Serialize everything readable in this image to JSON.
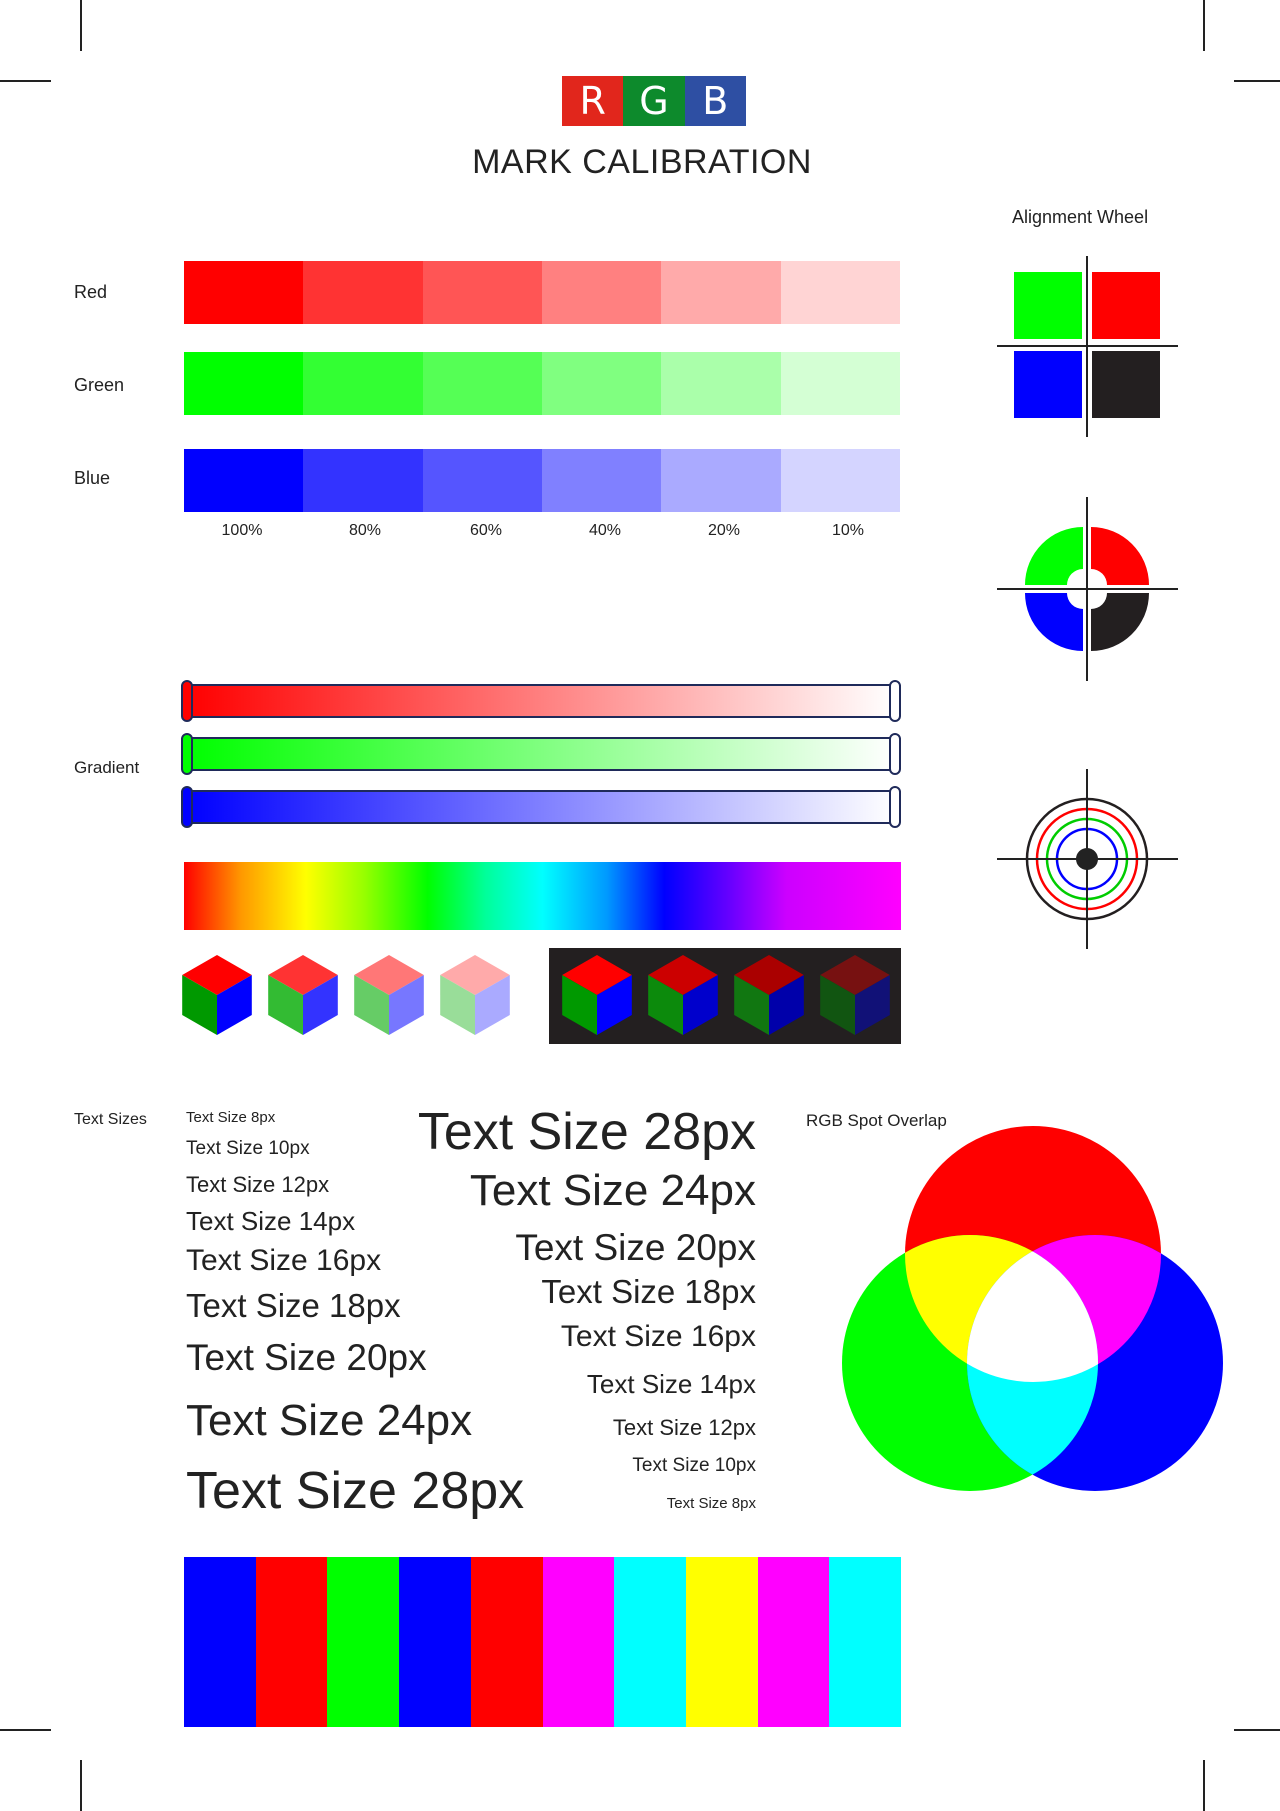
{
  "logo": {
    "letters": [
      {
        "char": "R",
        "color": "#e1261c"
      },
      {
        "char": "G",
        "color": "#0d8a2c"
      },
      {
        "char": "B",
        "color": "#2e4fa3"
      }
    ]
  },
  "title": "MARK CALIBRATION",
  "swatches": {
    "rows": [
      {
        "label": "Red",
        "colors": [
          "#ff0000",
          "#ff3333",
          "#ff5555",
          "#ff8080",
          "#ffaaaa",
          "#ffd4d4"
        ]
      },
      {
        "label": "Green",
        "colors": [
          "#00ff00",
          "#33ff33",
          "#55ff55",
          "#80ff80",
          "#aaffaa",
          "#d4ffd4"
        ]
      },
      {
        "label": "Blue",
        "colors": [
          "#0000ff",
          "#3333ff",
          "#5555ff",
          "#8080ff",
          "#aaaaff",
          "#d4d4ff"
        ]
      }
    ],
    "percentages": [
      "100%",
      "80%",
      "60%",
      "40%",
      "20%",
      "10%"
    ]
  },
  "gradient": {
    "label": "Gradient",
    "colors": [
      "#ff0000",
      "#00ff00",
      "#0000ff"
    ]
  },
  "cubes": {
    "light": [
      {
        "top": "#ff0000",
        "left": "#009900",
        "right": "#0000ff"
      },
      {
        "top": "#ff3333",
        "left": "#33bb33",
        "right": "#3333ff"
      },
      {
        "top": "#ff7777",
        "left": "#66cc66",
        "right": "#7777ff"
      },
      {
        "top": "#ffaaaa",
        "left": "#99dd99",
        "right": "#aaaaff"
      }
    ],
    "dark": [
      {
        "top": "#ff0000",
        "left": "#009900",
        "right": "#0000ff"
      },
      {
        "top": "#cc0000",
        "left": "#0c8a0c",
        "right": "#0000cc"
      },
      {
        "top": "#aa0000",
        "left": "#117711",
        "right": "#0000aa"
      },
      {
        "top": "#771111",
        "left": "#115511",
        "right": "#111177"
      }
    ]
  },
  "alignment_wheel": {
    "title": "Alignment Wheel",
    "quadrant_colors": [
      "#00ff00",
      "#ff0000",
      "#0000ff",
      "#231f20"
    ],
    "ring_colors": [
      "#231f20",
      "#ff0000",
      "#00cc00",
      "#0000ff"
    ]
  },
  "text_sizes": {
    "label": "Text Sizes",
    "left": [
      {
        "text": "Text Size 8px",
        "size": 8
      },
      {
        "text": "Text Size 10px",
        "size": 10
      },
      {
        "text": "Text Size 12px",
        "size": 12
      },
      {
        "text": "Text Size 14px",
        "size": 14
      },
      {
        "text": "Text Size 16px",
        "size": 16
      },
      {
        "text": "Text Size 18px",
        "size": 18
      },
      {
        "text": "Text Size 20px",
        "size": 20
      },
      {
        "text": "Text Size 24px",
        "size": 24
      },
      {
        "text": "Text Size 28px",
        "size": 28
      }
    ],
    "right": [
      {
        "text": "Text Size 28px",
        "size": 28
      },
      {
        "text": "Text Size 24px",
        "size": 24
      },
      {
        "text": "Text Size 20px",
        "size": 20
      },
      {
        "text": "Text Size 18px",
        "size": 18
      },
      {
        "text": "Text Size 16px",
        "size": 16
      },
      {
        "text": "Text Size 14px",
        "size": 14
      },
      {
        "text": "Text Size 12px",
        "size": 12
      },
      {
        "text": "Text Size 10px",
        "size": 10
      },
      {
        "text": "Text Size 8px",
        "size": 8
      }
    ]
  },
  "spot_overlap": {
    "title": "RGB Spot Overlap",
    "circle_colors": [
      "#ff0000",
      "#00ff00",
      "#0000ff"
    ],
    "overlap_colors": {
      "red_green": "#ffff00",
      "red_blue": "#ff00ff",
      "green_blue": "#00ffff",
      "all": "#ffffff"
    }
  },
  "color_bars": [
    "#0000ff",
    "#ff0000",
    "#00ff00",
    "#0000ff",
    "#ff0000",
    "#ff00ff",
    "#00ffff",
    "#ffff00",
    "#ff00ff",
    "#00ffff"
  ]
}
